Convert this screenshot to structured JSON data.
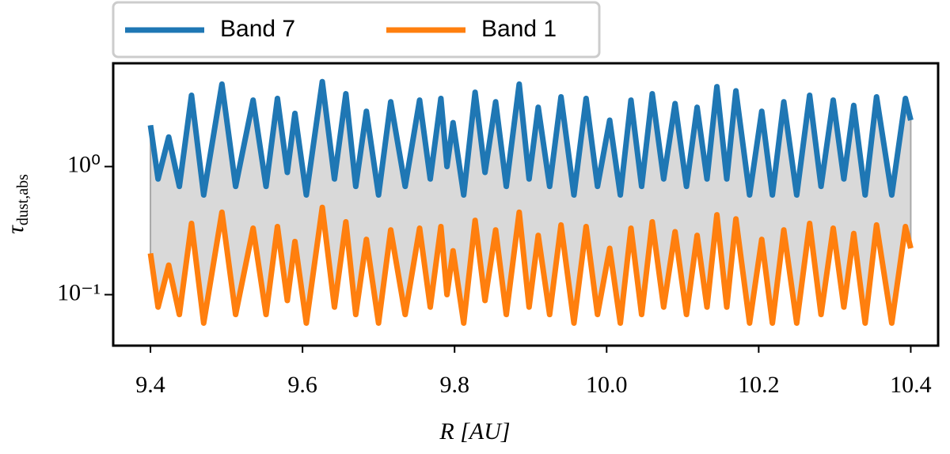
{
  "chart_data": {
    "type": "line",
    "xlabel": "R [AU]",
    "ylabel": {
      "symbol": "τ",
      "subscript": "dust,abs"
    },
    "log_y": true,
    "legend": "top-left outside",
    "fill_between": {
      "color": "#d9d9d9",
      "edge": "#a8a8a8"
    },
    "xlim": [
      9.351,
      10.436
    ],
    "ylim": [
      0.04,
      6.4
    ],
    "xticks": [
      9.4,
      9.6,
      9.8,
      {
        "value": 10,
        "label": "10.0"
      },
      10.2,
      10.4
    ],
    "yticks": [
      {
        "value": 0.1,
        "label": "10⁻¹"
      },
      {
        "value": 1,
        "label": "10⁰"
      }
    ],
    "x": [
      9.4,
      9.41,
      9.424,
      9.438,
      9.454,
      9.47,
      9.494,
      9.512,
      9.535,
      9.552,
      9.567,
      9.58,
      9.59,
      9.605,
      9.626,
      9.642,
      9.657,
      9.67,
      9.684,
      9.7,
      9.716,
      9.735,
      9.754,
      9.768,
      9.782,
      9.79,
      9.798,
      9.812,
      9.827,
      9.84,
      9.854,
      9.868,
      9.885,
      9.898,
      9.91,
      9.925,
      9.94,
      9.957,
      9.973,
      9.988,
      10.004,
      10.018,
      10.032,
      10.046,
      10.06,
      10.075,
      10.09,
      10.105,
      10.119,
      10.132,
      10.145,
      10.158,
      10.17,
      10.188,
      10.204,
      10.218,
      10.233,
      10.25,
      10.267,
      10.282,
      10.298,
      10.312,
      10.325,
      10.34,
      10.355,
      10.375,
      10.393,
      10.4
    ],
    "series": [
      {
        "name": "Band 7",
        "color": "#1f77b4",
        "values": [
          2.1,
          0.8,
          1.7,
          0.7,
          3.6,
          0.6,
          4.4,
          0.7,
          3.3,
          0.7,
          3.4,
          0.9,
          2.6,
          0.6,
          4.6,
          0.8,
          3.7,
          0.7,
          2.7,
          0.6,
          3.2,
          0.7,
          3.3,
          0.8,
          3.4,
          1.0,
          2.2,
          0.6,
          3.8,
          0.9,
          3.2,
          0.7,
          4.4,
          0.8,
          2.9,
          0.7,
          3.5,
          0.6,
          3.4,
          0.7,
          2.3,
          0.6,
          3.3,
          0.7,
          3.7,
          0.8,
          3.1,
          0.7,
          2.9,
          0.8,
          4.2,
          0.8,
          3.9,
          0.6,
          2.7,
          0.6,
          3.2,
          0.6,
          3.6,
          0.7,
          3.3,
          0.8,
          3.0,
          0.6,
          3.5,
          0.6,
          3.4,
          2.3
        ]
      },
      {
        "name": "Band 1",
        "color": "#ff7f0e",
        "values": [
          0.21,
          0.08,
          0.17,
          0.07,
          0.36,
          0.06,
          0.44,
          0.07,
          0.33,
          0.07,
          0.34,
          0.09,
          0.26,
          0.06,
          0.48,
          0.08,
          0.37,
          0.07,
          0.27,
          0.06,
          0.32,
          0.07,
          0.33,
          0.08,
          0.34,
          0.1,
          0.22,
          0.06,
          0.38,
          0.09,
          0.32,
          0.07,
          0.44,
          0.08,
          0.29,
          0.07,
          0.35,
          0.06,
          0.34,
          0.07,
          0.23,
          0.06,
          0.33,
          0.07,
          0.37,
          0.08,
          0.31,
          0.07,
          0.29,
          0.08,
          0.42,
          0.08,
          0.39,
          0.06,
          0.27,
          0.06,
          0.32,
          0.06,
          0.36,
          0.07,
          0.33,
          0.08,
          0.3,
          0.06,
          0.35,
          0.06,
          0.34,
          0.23
        ]
      }
    ]
  }
}
